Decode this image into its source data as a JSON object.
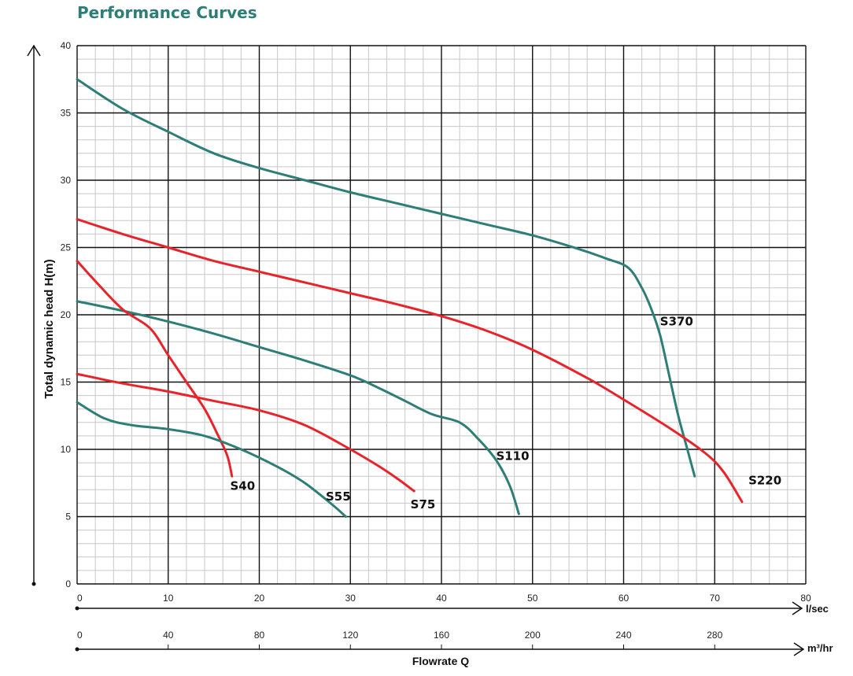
{
  "title": "Performance Curves",
  "colors": {
    "teal": "#2e7e78",
    "red": "#e8232a"
  },
  "chart_data": {
    "type": "line",
    "title": "Performance Curves",
    "ylabel": "Total dynamic head H(m)",
    "xlabel": "Flowrate Q",
    "x_unit": "l/sec",
    "x2_unit": "m³/hr",
    "xlim": [
      0,
      80
    ],
    "ylim": [
      0,
      40
    ],
    "x_ticks": [
      0,
      10,
      20,
      30,
      40,
      50,
      60,
      70,
      80
    ],
    "y_ticks": [
      0,
      5,
      10,
      15,
      20,
      25,
      30,
      35,
      40
    ],
    "x2_ticks": [
      0,
      40,
      80,
      120,
      160,
      200,
      240,
      280
    ],
    "grid": true,
    "series": [
      {
        "name": "S370",
        "color": "teal",
        "points": [
          [
            0,
            37.5
          ],
          [
            5,
            35.3
          ],
          [
            10,
            33.6
          ],
          [
            15,
            32.0
          ],
          [
            20,
            30.9
          ],
          [
            25,
            30.0
          ],
          [
            30,
            29.1
          ],
          [
            35,
            28.3
          ],
          [
            40,
            27.5
          ],
          [
            45,
            26.7
          ],
          [
            50,
            25.9
          ],
          [
            55,
            24.9
          ],
          [
            58,
            24.2
          ],
          [
            60.5,
            23.5
          ],
          [
            62,
            22.0
          ],
          [
            63,
            20.5
          ],
          [
            64,
            18.5
          ],
          [
            65,
            15.5
          ],
          [
            66,
            12.5
          ],
          [
            67,
            10.0
          ],
          [
            67.8,
            8.0
          ]
        ]
      },
      {
        "name": "S220",
        "color": "red",
        "points": [
          [
            0,
            27.1
          ],
          [
            5,
            26.0
          ],
          [
            10,
            25.0
          ],
          [
            15,
            24.0
          ],
          [
            20,
            23.2
          ],
          [
            25,
            22.4
          ],
          [
            30,
            21.6
          ],
          [
            35,
            20.8
          ],
          [
            40,
            19.9
          ],
          [
            45,
            18.8
          ],
          [
            50,
            17.4
          ],
          [
            56,
            15.3
          ],
          [
            60,
            13.7
          ],
          [
            65,
            11.6
          ],
          [
            69,
            9.7
          ],
          [
            71,
            8.3
          ],
          [
            73,
            6.1
          ]
        ]
      },
      {
        "name": "S110",
        "color": "teal",
        "points": [
          [
            0,
            21.0
          ],
          [
            5,
            20.3
          ],
          [
            10,
            19.5
          ],
          [
            15,
            18.6
          ],
          [
            20,
            17.6
          ],
          [
            25,
            16.6
          ],
          [
            30,
            15.5
          ],
          [
            33,
            14.6
          ],
          [
            36,
            13.6
          ],
          [
            39,
            12.6
          ],
          [
            42,
            12.0
          ],
          [
            44,
            10.8
          ],
          [
            46,
            9.2
          ],
          [
            47.5,
            7.3
          ],
          [
            48.5,
            5.2
          ]
        ]
      },
      {
        "name": "S40",
        "color": "red",
        "points": [
          [
            0,
            24.0
          ],
          [
            2,
            22.5
          ],
          [
            5,
            20.4
          ],
          [
            8,
            19.0
          ],
          [
            10,
            17.0
          ],
          [
            12,
            15.0
          ],
          [
            14,
            13.0
          ],
          [
            15.5,
            11.0
          ],
          [
            16.5,
            9.5
          ],
          [
            17,
            8.0
          ]
        ]
      },
      {
        "name": "S75",
        "color": "red",
        "points": [
          [
            0,
            15.6
          ],
          [
            5,
            14.9
          ],
          [
            10,
            14.3
          ],
          [
            15,
            13.6
          ],
          [
            20,
            12.9
          ],
          [
            25,
            11.8
          ],
          [
            30,
            10.0
          ],
          [
            33,
            8.8
          ],
          [
            35,
            7.9
          ],
          [
            37,
            6.9
          ]
        ]
      },
      {
        "name": "S55",
        "color": "teal",
        "points": [
          [
            0,
            13.5
          ],
          [
            3,
            12.3
          ],
          [
            6,
            11.8
          ],
          [
            10,
            11.5
          ],
          [
            14,
            11.0
          ],
          [
            18,
            10.0
          ],
          [
            22,
            8.7
          ],
          [
            25,
            7.5
          ],
          [
            28,
            5.9
          ],
          [
            29.5,
            5.0
          ]
        ]
      }
    ],
    "labels": [
      {
        "text": "S370",
        "x": 64.0,
        "y": 19.2
      },
      {
        "text": "S220",
        "x": 73.7,
        "y": 7.4
      },
      {
        "text": "S110",
        "x": 46.0,
        "y": 9.2
      },
      {
        "text": "S40",
        "x": 16.8,
        "y": 7.0
      },
      {
        "text": "S55",
        "x": 27.3,
        "y": 6.2
      },
      {
        "text": "S75",
        "x": 36.6,
        "y": 5.6
      }
    ]
  }
}
